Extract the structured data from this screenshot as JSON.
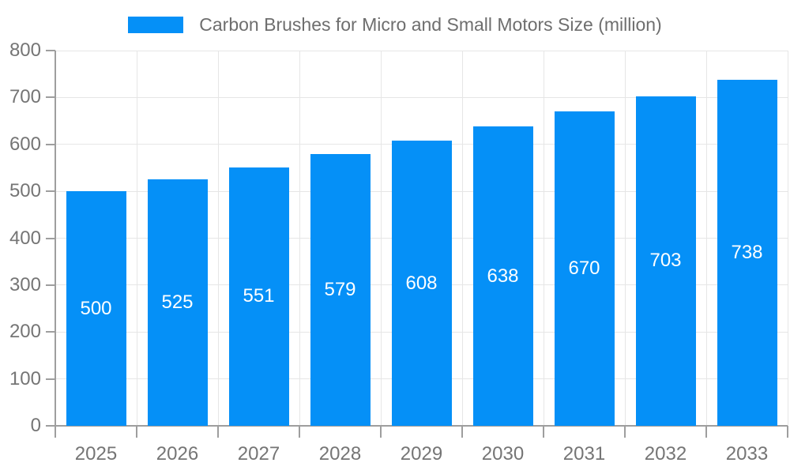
{
  "chart_data": {
    "type": "bar",
    "title": "Carbon Brushes for Micro and Small Motors Size (million)",
    "categories": [
      "2025",
      "2026",
      "2027",
      "2028",
      "2029",
      "2030",
      "2031",
      "2032",
      "2033"
    ],
    "values": [
      500,
      525,
      551,
      579,
      608,
      638,
      670,
      703,
      738
    ],
    "xlabel": "",
    "ylabel": "",
    "ylim": [
      0,
      800
    ],
    "ytick_step": 100,
    "grid": true,
    "legend_position": "top-center",
    "value_labels": "inside-center",
    "bar_color": "#0590f7",
    "value_label_color": "#ffffff",
    "axis_color": "#9e9e9e",
    "gridline_color": "#e6e6e6",
    "tick_label_color": "#757575",
    "title_color": "#6e6e6e"
  }
}
